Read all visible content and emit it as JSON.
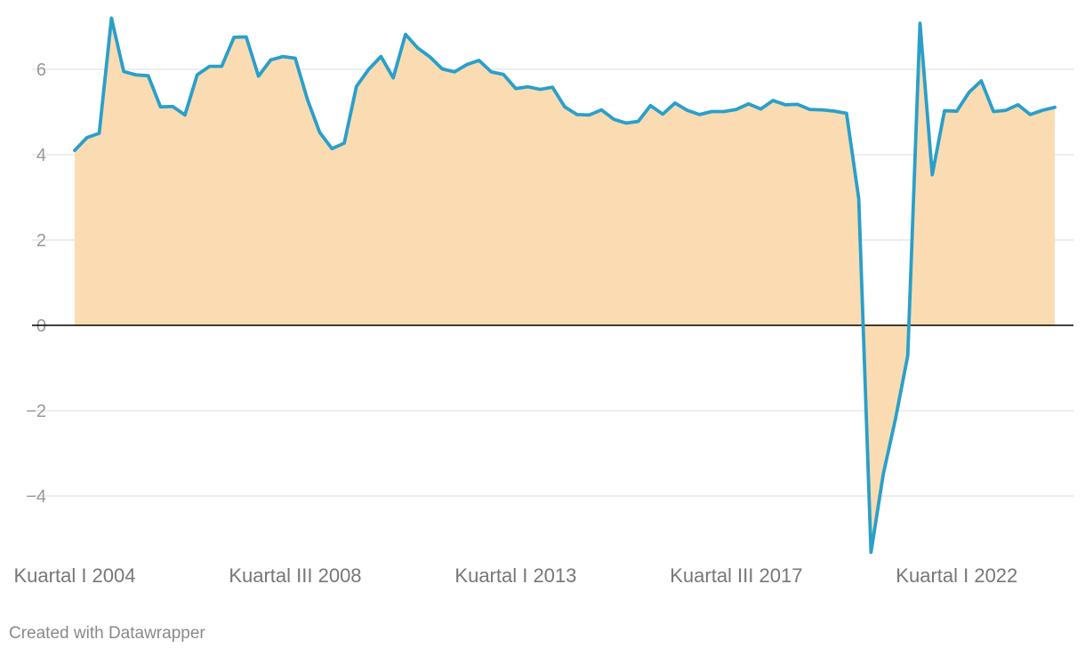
{
  "chart_data": {
    "type": "area",
    "title": "",
    "xlabel": "",
    "ylabel": "",
    "ylim": [
      -5.5,
      7.5
    ],
    "grid": true,
    "legend": "none",
    "yticks": [
      -4,
      -2,
      0,
      2,
      4,
      6
    ],
    "ytick_labels": [
      "−4",
      "−2",
      "0",
      "2",
      "4",
      "6"
    ],
    "x_tick_labels": [
      {
        "label": "Kuartal I 2004",
        "index": 0
      },
      {
        "label": "Kuartal III 2008",
        "index": 18
      },
      {
        "label": "Kuartal I 2013",
        "index": 36
      },
      {
        "label": "Kuartal III 2017",
        "index": 54
      },
      {
        "label": "Kuartal I 2022",
        "index": 72
      }
    ],
    "series": [
      {
        "values": [
          4.1,
          4.4,
          4.5,
          7.2,
          5.95,
          5.87,
          5.85,
          5.12,
          5.13,
          4.93,
          5.87,
          6.07,
          6.07,
          6.75,
          6.76,
          5.84,
          6.22,
          6.3,
          6.26,
          5.29,
          4.52,
          4.14,
          4.27,
          5.6,
          6.0,
          6.3,
          5.8,
          6.82,
          6.5,
          6.29,
          6.01,
          5.94,
          6.11,
          6.21,
          5.94,
          5.88,
          5.55,
          5.59,
          5.53,
          5.58,
          5.12,
          4.94,
          4.93,
          5.05,
          4.83,
          4.74,
          4.78,
          5.15,
          4.95,
          5.21,
          5.04,
          4.94,
          5.01,
          5.01,
          5.06,
          5.19,
          5.07,
          5.27,
          5.17,
          5.18,
          5.06,
          5.05,
          5.02,
          4.97,
          2.97,
          -5.32,
          -3.49,
          -2.19,
          -0.71,
          7.08,
          3.53,
          5.03,
          5.02,
          5.46,
          5.73,
          5.01,
          5.04,
          5.17,
          4.94,
          5.04,
          5.11
        ]
      }
    ],
    "colors": {
      "line": "#2a9fcb",
      "fill": "#fbdcb2",
      "grid": "#e2e2e2",
      "zero": "#000000"
    }
  },
  "footer": {
    "credit": "Created with Datawrapper"
  }
}
